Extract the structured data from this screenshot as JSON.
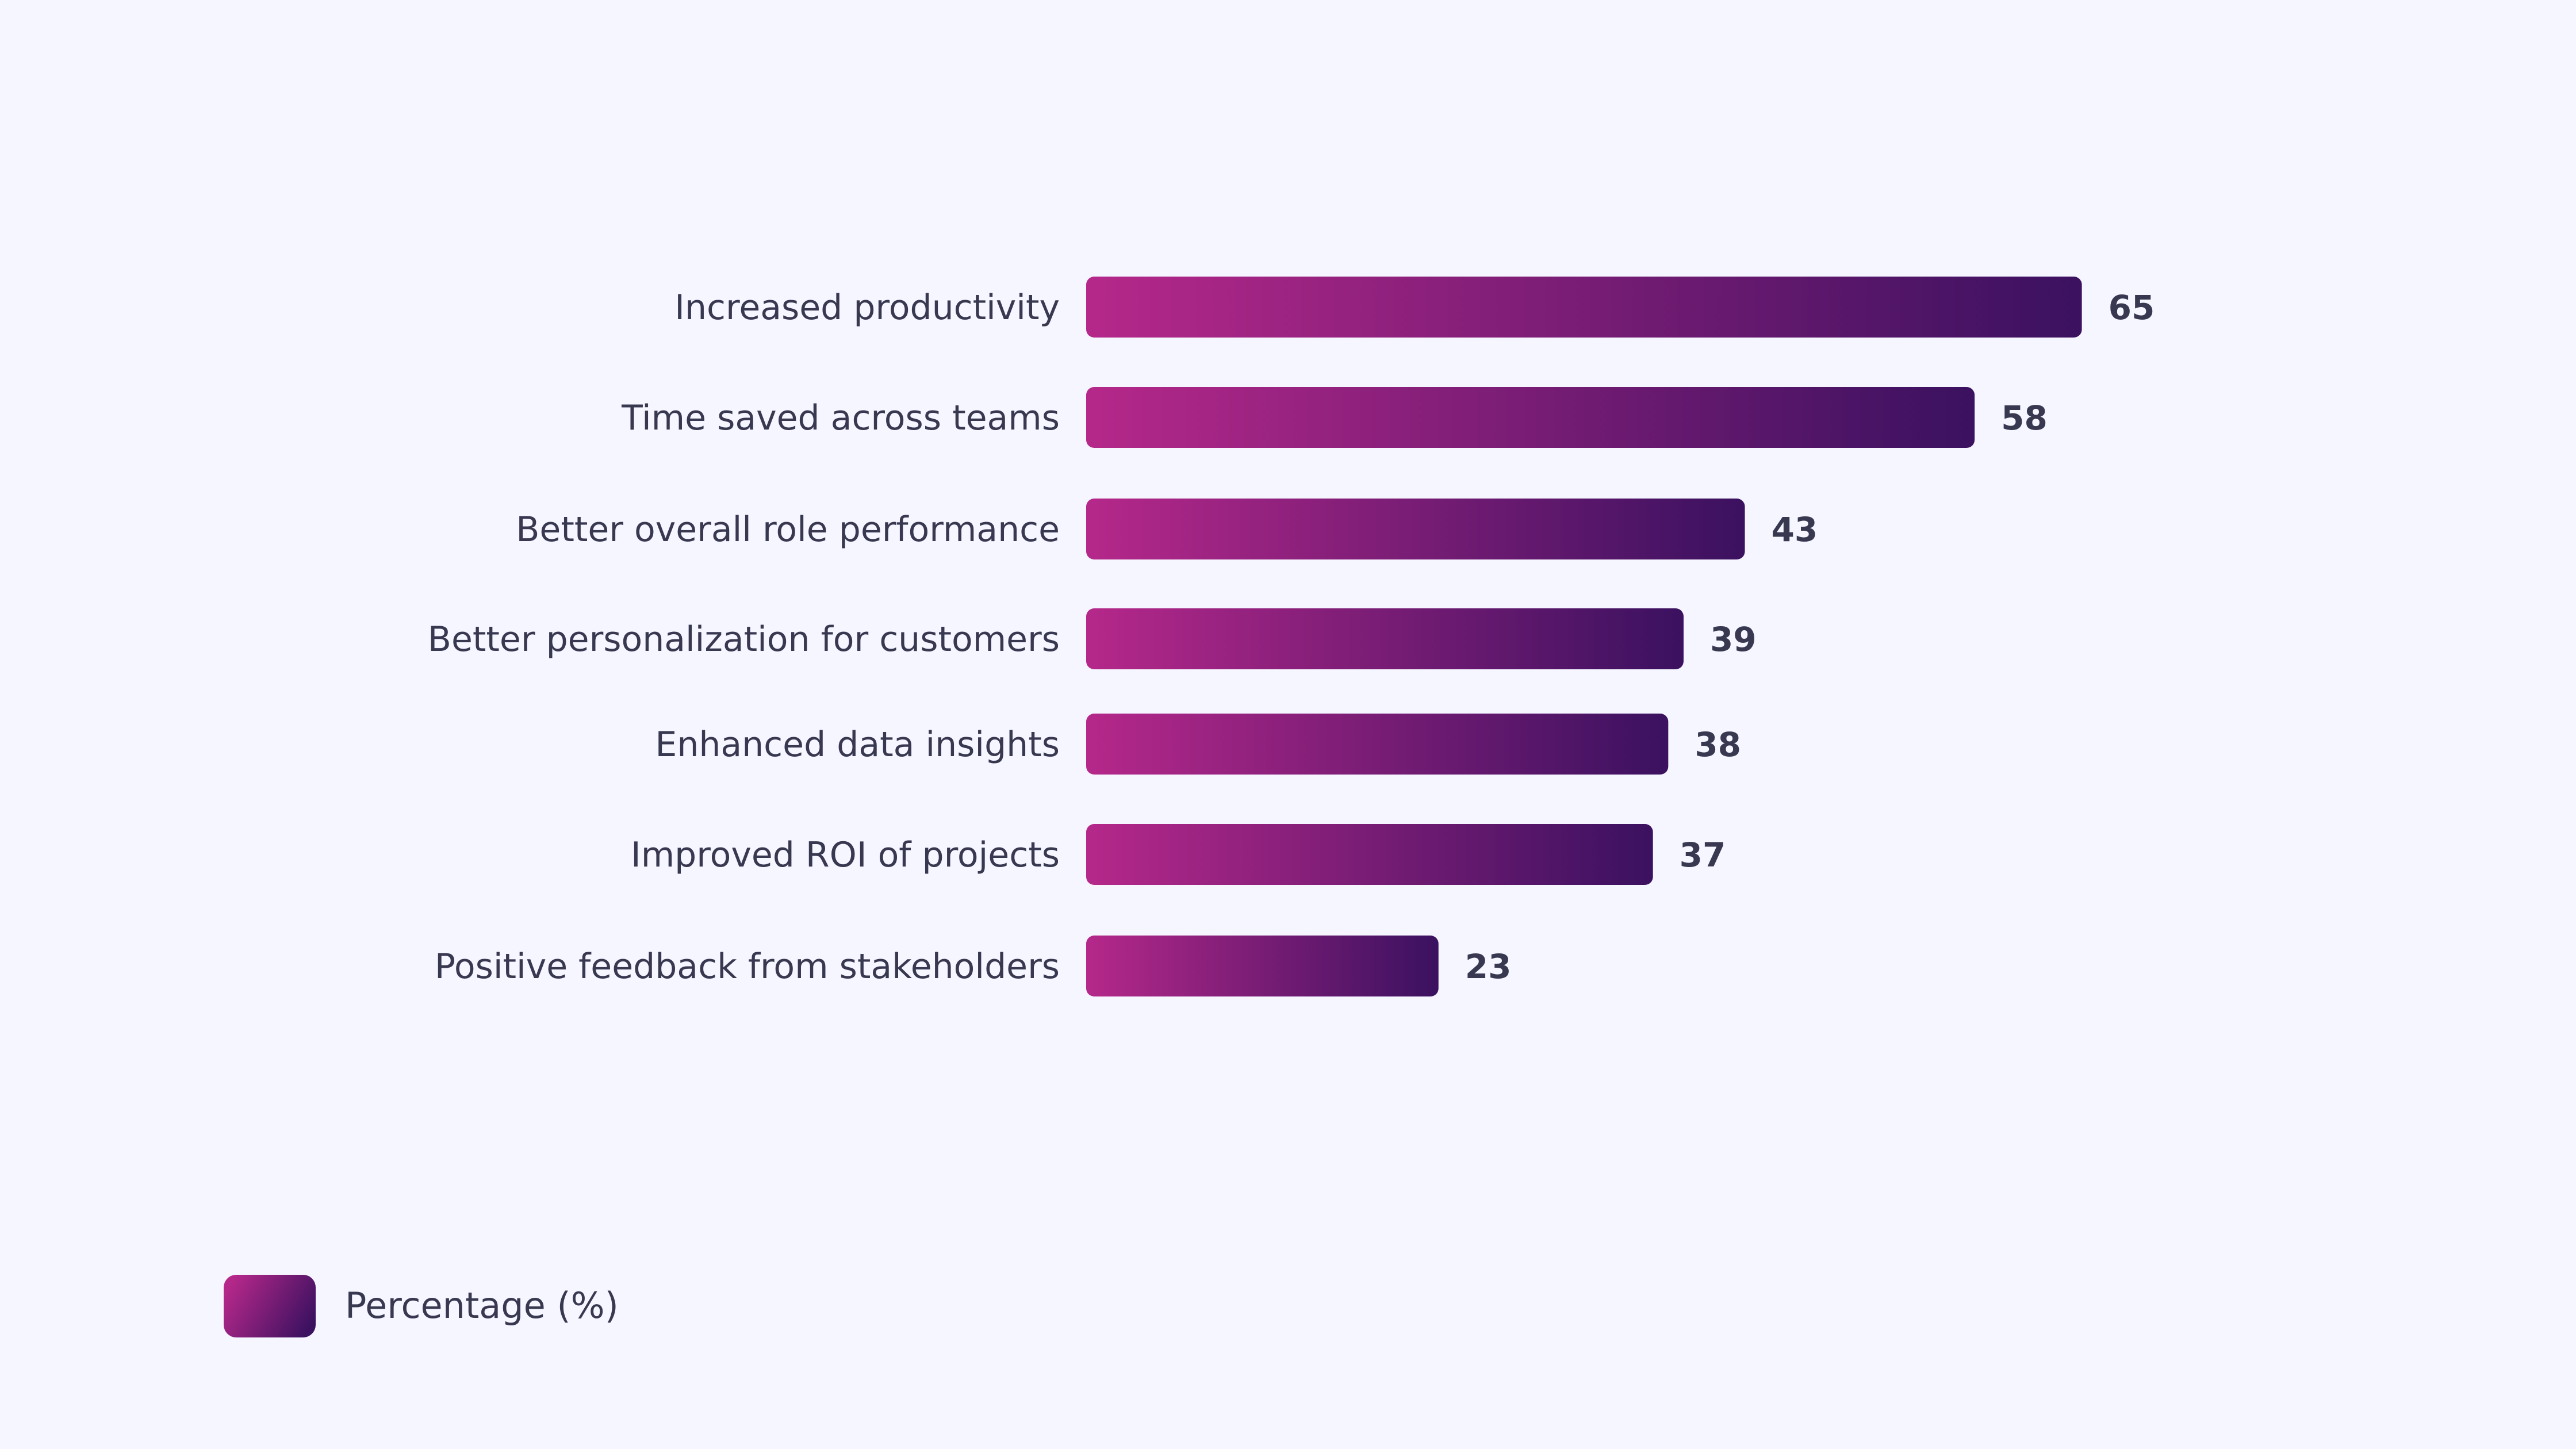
{
  "chart_data": {
    "type": "bar",
    "orientation": "horizontal",
    "categories": [
      "Increased productivity",
      "Time saved across teams",
      "Better overall role performance",
      "Better personalization for customers",
      "Enhanced data insights",
      "Improved ROI of projects",
      "Positive feedback from stakeholders"
    ],
    "series": [
      {
        "name": "Percentage (%)",
        "values": [
          65,
          58,
          43,
          39,
          38,
          37,
          23
        ]
      }
    ],
    "xlim": [
      0,
      65
    ],
    "grid": false,
    "data_labels": true,
    "legend_position": "bottom-left",
    "colors": {
      "gradient_start": "#B5288A",
      "gradient_end": "#3B1160",
      "text": "#383850",
      "background": "#F5F6FF"
    }
  }
}
